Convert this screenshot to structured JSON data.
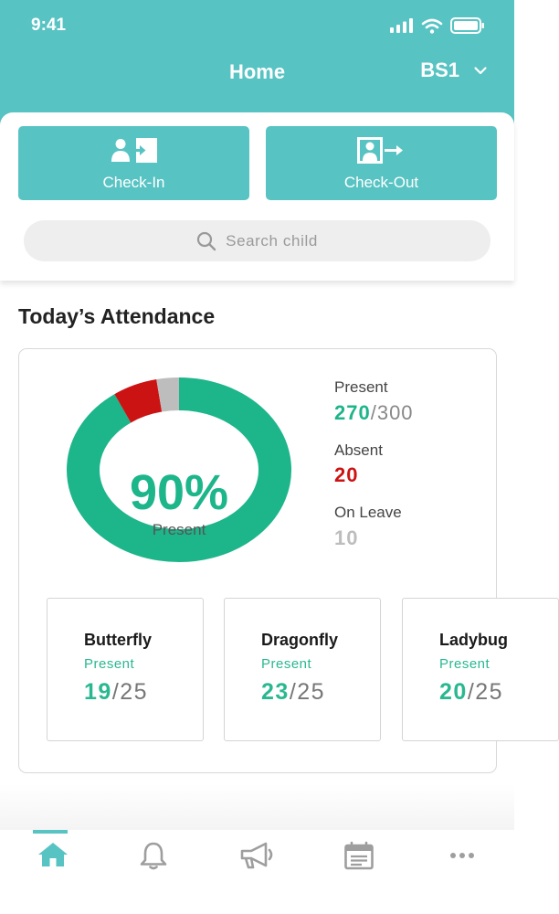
{
  "status_bar": {
    "time": "9:41"
  },
  "header": {
    "title": "Home",
    "site_selector": "BS1"
  },
  "actions": {
    "check_in_label": "Check-In",
    "check_out_label": "Check-Out"
  },
  "search": {
    "placeholder": "Search  child"
  },
  "attendance": {
    "section_title": "Today’s Attendance",
    "percent_text": "90%",
    "percent_caption": "Present",
    "present_fraction": 0.9,
    "absent_fraction": 0.0667,
    "leave_fraction": 0.0333,
    "colors": {
      "present": "#1db58a",
      "absent": "#cc1313",
      "leave": "#bdbdbd"
    },
    "stats": {
      "present_label": "Present",
      "present_value": "270",
      "present_total": "/300",
      "absent_label": "Absent",
      "absent_value": "20",
      "leave_label": "On Leave",
      "leave_value": "10"
    }
  },
  "classes": [
    {
      "name": "Butterfly",
      "status": "Present",
      "present": "19",
      "total": "/25"
    },
    {
      "name": "Dragonfly",
      "status": "Present",
      "present": "23",
      "total": "/25"
    },
    {
      "name": "Ladybug",
      "status": "Present",
      "present": "20",
      "total": "/25"
    }
  ],
  "tab_bar": {
    "tabs": [
      "home-icon",
      "bell-icon",
      "megaphone-icon",
      "calendar-icon",
      "more-icon"
    ],
    "active": "home-icon",
    "accent": "#58c3c3",
    "inactive_color": "#9e9e9e"
  }
}
